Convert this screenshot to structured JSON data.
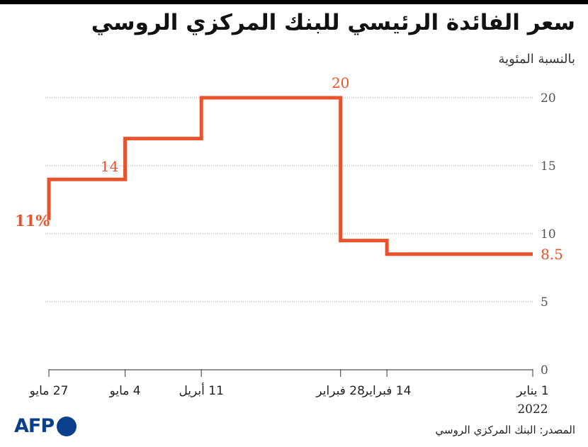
{
  "header": {
    "title": "سعر الفائدة الرئيسي للبنك المركزي الروسي",
    "subtitle": "بالنسبة المئوية"
  },
  "footer": {
    "logo_text": "AFP",
    "source": "المصدر: البنك المركزي الروسي"
  },
  "colors": {
    "series": "#e8532b",
    "grid": "#999999",
    "axis": "#555555",
    "text": "#222222",
    "logo": "#0a3f8c"
  },
  "chart_data": {
    "type": "line",
    "step": true,
    "series": [
      {
        "values": [
          {
            "date": "2022-01-01",
            "y": 8.5
          },
          {
            "date": "2022-02-14",
            "y": 9.5
          },
          {
            "date": "2022-02-28",
            "y": 20
          },
          {
            "date": "2022-04-11",
            "y": 17
          },
          {
            "date": "2022-05-04",
            "y": 14
          },
          {
            "date": "2022-05-27",
            "y": 11
          }
        ]
      }
    ],
    "x_axis": {
      "direction": "right-to-left",
      "range": [
        "2022-01-01",
        "2022-05-27"
      ],
      "ticks": [
        {
          "date": "2022-01-01",
          "label": "1 يناير",
          "label2": "2022"
        },
        {
          "date": "2022-02-14",
          "label": "14 فبراير"
        },
        {
          "date": "2022-02-28",
          "label": "28 فبراير"
        },
        {
          "date": "2022-04-11",
          "label": "11 أبريل"
        },
        {
          "date": "2022-05-04",
          "label": "4 مايو"
        },
        {
          "date": "2022-05-27",
          "label": "27 مايو"
        }
      ]
    },
    "y_axis": {
      "range": [
        0,
        20
      ],
      "ticks": [
        0,
        5,
        10,
        15,
        20
      ],
      "position": "right"
    },
    "grid": true,
    "annotations": [
      {
        "date": "2022-05-27",
        "y": 11,
        "label": "11%"
      },
      {
        "date": "2022-05-04",
        "y": 14,
        "label": "14"
      },
      {
        "date": "2022-02-28",
        "y": 20,
        "label": "20"
      },
      {
        "date": "2022-01-01",
        "y": 8.5,
        "label": "8.5"
      }
    ]
  }
}
